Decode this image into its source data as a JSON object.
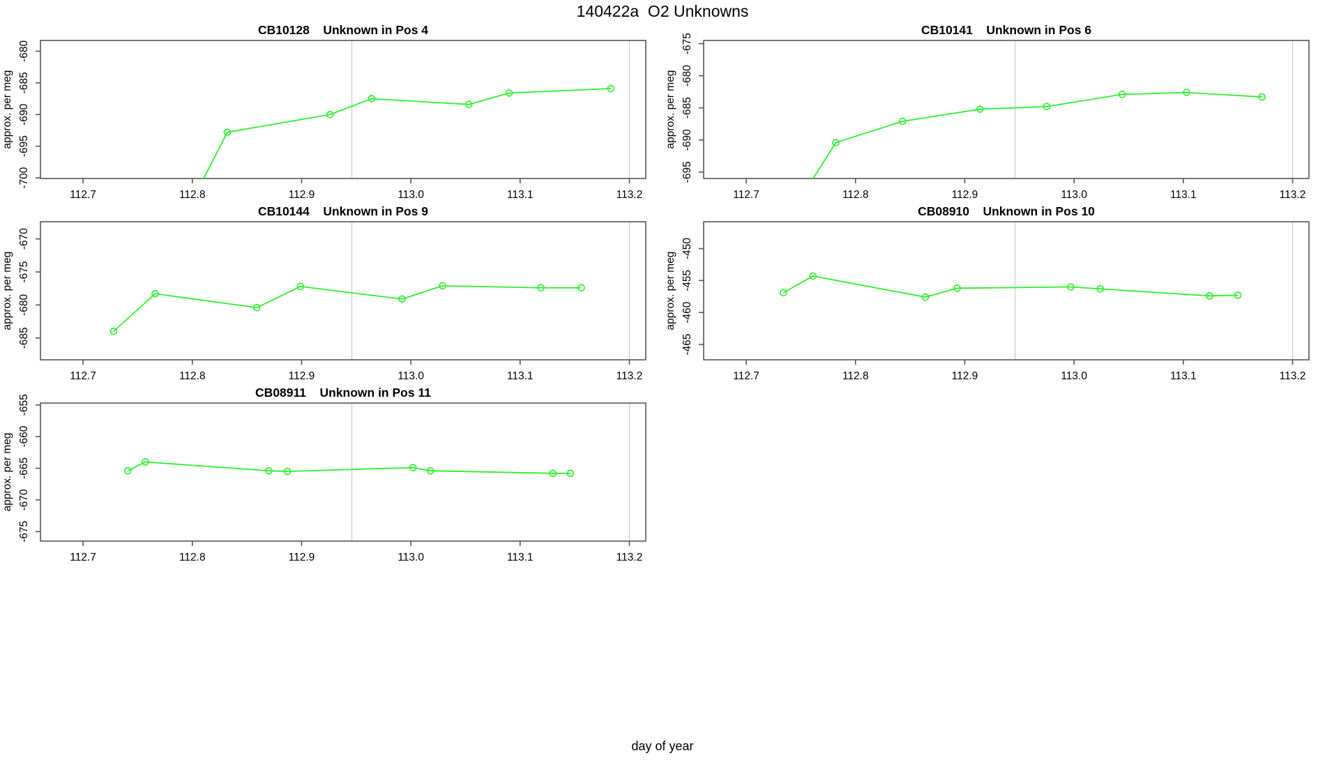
{
  "page_title": "140422a  O2 Unknowns",
  "xaxis_label": "day of year",
  "colors": {
    "series": "#2bf02b",
    "refline": "#c9c9c9",
    "axis": "#555555",
    "text": "#000000"
  },
  "chart_data": [
    {
      "type": "line",
      "title": "CB10128    Unknown in Pos 4",
      "ylabel": "approx. per meg",
      "xlim": [
        112.661,
        113.215
      ],
      "ylim": [
        -700.1,
        -678.3
      ],
      "xticks": [
        "112.7",
        "112.8",
        "112.9",
        "113.0",
        "113.1",
        "113.2"
      ],
      "yticks": [
        "-680",
        "-685",
        "-690",
        "-695",
        "-700"
      ],
      "vlines": [
        112.946,
        113.2
      ],
      "x": [
        112.8,
        112.832,
        112.926,
        112.964,
        113.053,
        113.09,
        113.183
      ],
      "y": [
        -703.6,
        -692.8,
        -690.0,
        -687.5,
        -688.4,
        -686.6,
        -685.9
      ]
    },
    {
      "type": "line",
      "title": "CB10141    Unknown in Pos 6",
      "ylabel": "approx. per meg",
      "xlim": [
        112.661,
        113.215
      ],
      "ylim": [
        -696.0,
        -674.5
      ],
      "xticks": [
        "112.7",
        "112.8",
        "112.9",
        "113.0",
        "113.1",
        "113.2"
      ],
      "yticks": [
        "-675",
        "-680",
        "-685",
        "-690",
        "-695"
      ],
      "vlines": [
        112.946,
        113.2
      ],
      "x": [
        112.75,
        112.782,
        112.843,
        112.914,
        112.975,
        113.044,
        113.103,
        113.172
      ],
      "y": [
        -699.0,
        -690.4,
        -687.1,
        -685.2,
        -684.8,
        -682.9,
        -682.6,
        -683.3
      ]
    },
    {
      "type": "line",
      "title": "CB10144    Unknown in Pos 9",
      "ylabel": "approx. per meg",
      "xlim": [
        112.661,
        113.215
      ],
      "ylim": [
        -688.3,
        -667.4
      ],
      "xticks": [
        "112.7",
        "112.8",
        "112.9",
        "113.0",
        "113.1",
        "113.2"
      ],
      "yticks": [
        "-670",
        "-675",
        "-680",
        "-685"
      ],
      "vlines": [
        112.946,
        113.2
      ],
      "x": [
        112.728,
        112.766,
        112.859,
        112.899,
        112.992,
        113.029,
        113.119,
        113.156
      ],
      "y": [
        -684.0,
        -678.3,
        -680.4,
        -677.2,
        -679.1,
        -677.1,
        -677.4,
        -677.4
      ]
    },
    {
      "type": "line",
      "title": "CB08910    Unknown in Pos 10",
      "ylabel": "approx. per meg",
      "xlim": [
        112.661,
        113.215
      ],
      "ylim": [
        -467.4,
        -445.8
      ],
      "xticks": [
        "112.7",
        "112.8",
        "112.9",
        "113.0",
        "113.1",
        "113.2"
      ],
      "yticks": [
        "-450",
        "-455",
        "-460",
        "-465"
      ],
      "vlines": [
        112.946,
        113.2
      ],
      "x": [
        112.734,
        112.761,
        112.864,
        112.893,
        112.997,
        113.024,
        113.124,
        113.15
      ],
      "y": [
        -456.9,
        -454.3,
        -457.6,
        -456.2,
        -456.0,
        -456.3,
        -457.4,
        -457.3
      ]
    },
    {
      "type": "line",
      "title": "CB08911    Unknown in Pos 11",
      "ylabel": "approx. per meg",
      "xlim": [
        112.661,
        113.215
      ],
      "ylim": [
        -676.5,
        -654.7
      ],
      "xticks": [
        "112.7",
        "112.8",
        "112.9",
        "113.0",
        "113.1",
        "113.2"
      ],
      "yticks": [
        "-655",
        "-660",
        "-665",
        "-670",
        "-675"
      ],
      "vlines": [
        112.946,
        113.2
      ],
      "x": [
        112.741,
        112.757,
        112.87,
        112.887,
        113.002,
        113.018,
        113.13,
        113.146
      ],
      "y": [
        -665.4,
        -664.0,
        -665.4,
        -665.5,
        -664.9,
        -665.4,
        -665.8,
        -665.8
      ]
    }
  ]
}
